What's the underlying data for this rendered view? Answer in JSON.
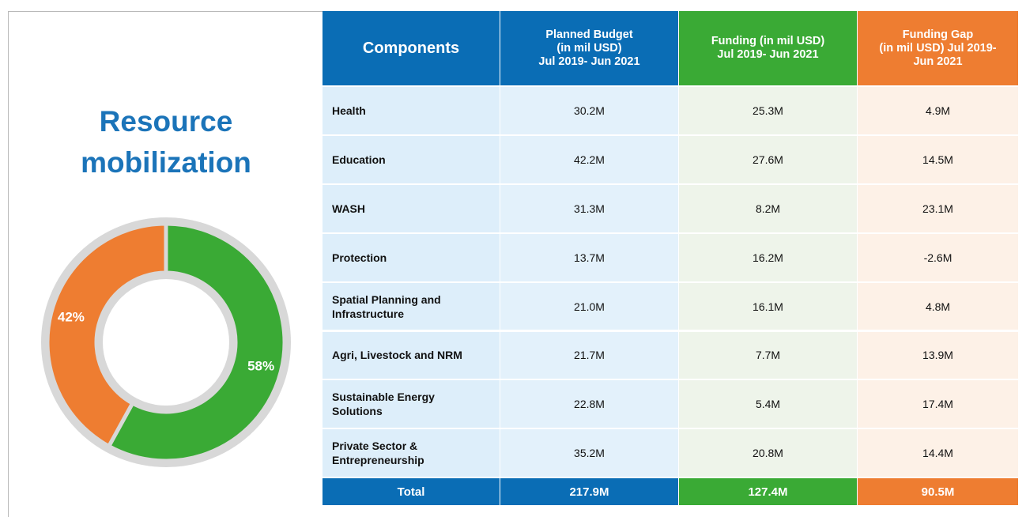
{
  "title": "Resource mobilization",
  "chart_data": {
    "type": "pie",
    "donut": true,
    "categories": [
      "Funding",
      "Funding Gap"
    ],
    "values": [
      58,
      42
    ],
    "value_labels": [
      "58%",
      "42%"
    ],
    "colors": [
      "#3aaa35",
      "#ee7d31"
    ]
  },
  "table": {
    "header": [
      [
        "Components"
      ],
      [
        "Planned Budget",
        "(in mil USD)",
        "Jul 2019- Jun 2021"
      ],
      [
        "Funding (in mil USD)",
        "Jul 2019- Jun 2021"
      ],
      [
        "Funding Gap",
        "(in mil USD) Jul 2019-",
        "Jun 2021"
      ]
    ],
    "rows": [
      [
        "Health",
        "30.2M",
        "25.3M",
        "4.9M"
      ],
      [
        "Education",
        "42.2M",
        "27.6M",
        "14.5M"
      ],
      [
        "WASH",
        "31.3M",
        "8.2M",
        "23.1M"
      ],
      [
        "Protection",
        "13.7M",
        "16.2M",
        "-2.6M"
      ],
      [
        "Spatial Planning and Infrastructure",
        "21.0M",
        "16.1M",
        "4.8M"
      ],
      [
        "Agri, Livestock and NRM",
        "21.7M",
        "7.7M",
        "13.9M"
      ],
      [
        "Sustainable Energy Solutions",
        "22.8M",
        "5.4M",
        "17.4M"
      ],
      [
        "Private Sector & Entrepreneurship",
        "35.2M",
        "20.8M",
        "14.4M"
      ]
    ],
    "total": [
      "Total",
      "217.9M",
      "127.4M",
      "90.5M"
    ]
  }
}
